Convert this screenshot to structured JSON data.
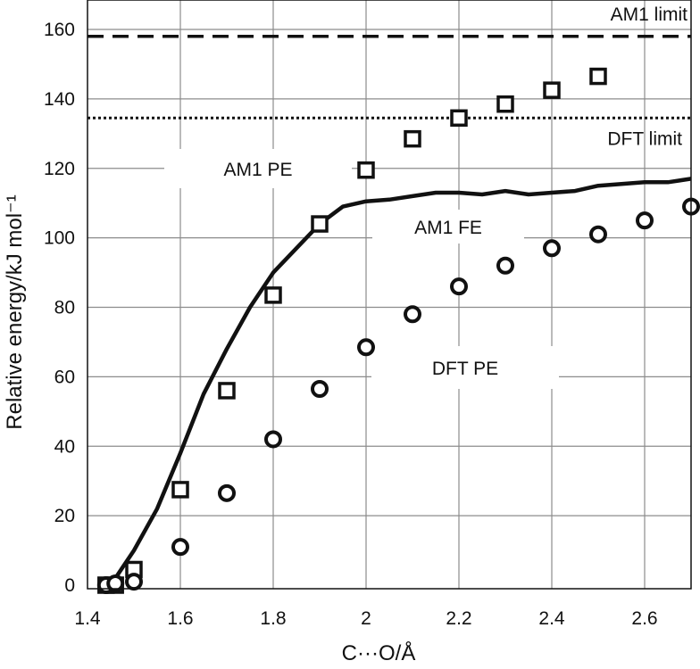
{
  "chart_data": {
    "type": "scatter",
    "title": "",
    "xlabel": "C···O/Å",
    "ylabel": "Relative energy/kJ mol⁻¹",
    "xlim": [
      1.4,
      2.7
    ],
    "ylim": [
      0,
      160
    ],
    "xticks": [
      "1.4",
      "1.6",
      "1.8",
      "2",
      "2.2",
      "2.4",
      "2.6"
    ],
    "yticks": [
      "0",
      "20",
      "40",
      "60",
      "80",
      "100",
      "120",
      "140",
      "160"
    ],
    "grid": true,
    "limits": [
      {
        "label": "AM1 limit",
        "y": 158,
        "style": "dashed"
      },
      {
        "label": "DFT limit",
        "y": 134.5,
        "style": "dotted"
      }
    ],
    "annotations": [
      "AM1 PE",
      "AM1 FE",
      "DFT PE"
    ],
    "series": [
      {
        "name": "AM1 PE",
        "marker": "square",
        "x": [
          1.44,
          1.46,
          1.5,
          1.6,
          1.7,
          1.8,
          1.9,
          2.0,
          2.1,
          2.2,
          2.3,
          2.4,
          2.5
        ],
        "y": [
          0,
          0,
          4.5,
          27.5,
          56,
          83.5,
          104,
          119.5,
          128.5,
          134.5,
          138.5,
          142.5,
          146.5
        ]
      },
      {
        "name": "DFT PE",
        "marker": "circle",
        "x": [
          1.44,
          1.46,
          1.5,
          1.6,
          1.7,
          1.8,
          1.9,
          2.0,
          2.1,
          2.2,
          2.3,
          2.4,
          2.5,
          2.6,
          2.7
        ],
        "y": [
          0,
          0.5,
          1,
          11,
          26.5,
          42,
          56.5,
          68.5,
          78,
          86,
          92,
          97,
          101,
          105,
          109
        ]
      },
      {
        "name": "AM1 FE",
        "marker": "line",
        "x": [
          1.43,
          1.46,
          1.5,
          1.55,
          1.6,
          1.65,
          1.7,
          1.75,
          1.8,
          1.85,
          1.9,
          1.95,
          2.0,
          2.05,
          2.1,
          2.15,
          2.2,
          2.25,
          2.3,
          2.35,
          2.4,
          2.45,
          2.5,
          2.55,
          2.6,
          2.65,
          2.7
        ],
        "y": [
          0,
          2,
          10,
          22,
          38,
          55,
          68,
          80,
          90,
          97,
          104,
          109,
          110.5,
          111,
          112,
          113,
          113,
          112.5,
          113.5,
          112.5,
          113,
          113.5,
          115,
          115.5,
          116,
          116,
          117
        ]
      }
    ]
  }
}
